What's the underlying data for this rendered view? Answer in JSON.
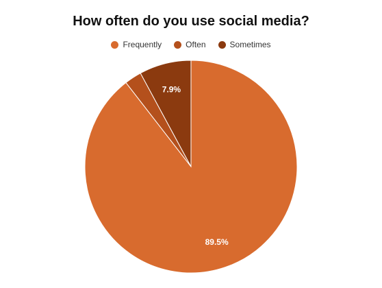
{
  "chart_data": {
    "type": "pie",
    "title": "How often do you use social media?",
    "legend_position": "top",
    "categories": [
      "Frequently",
      "Often",
      "Sometimes"
    ],
    "values": [
      89.5,
      2.6,
      7.9
    ],
    "data_labels": [
      "89.5%",
      "",
      "7.9%"
    ],
    "colors": [
      "#D86B2E",
      "#B4501C",
      "#8B3A0F"
    ],
    "start": "12 o'clock",
    "direction": "clockwise"
  }
}
